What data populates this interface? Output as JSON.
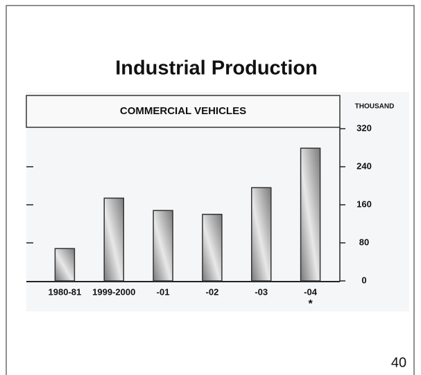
{
  "chart_data": {
    "type": "bar",
    "title": "Industrial Production",
    "subtitle": "COMMERCIAL VEHICLES",
    "y_label": "THOUSAND",
    "categories": [
      "1980-81",
      "1999-2000",
      "-01",
      "-02",
      "-03",
      "-04"
    ],
    "values": [
      68,
      174,
      148,
      140,
      196,
      279
    ],
    "color": "#8a8a8a",
    "annotation": "*",
    "ylim": [
      0,
      320
    ],
    "yticks": [
      0,
      80,
      160,
      240,
      320
    ],
    "grid": false
  },
  "page_number": "40"
}
